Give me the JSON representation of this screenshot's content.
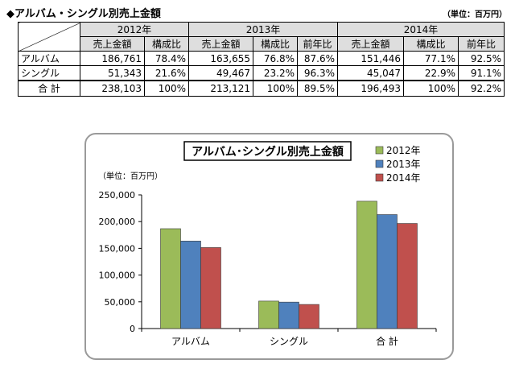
{
  "header": {
    "title": "◆アルバム・シングル別売上金額",
    "unit": "（単位：百万円）"
  },
  "table": {
    "years": [
      "2012年",
      "2013年",
      "2014年"
    ],
    "headers_2012": [
      "売上金額",
      "構成比"
    ],
    "headers_other": [
      "売上金額",
      "構成比",
      "前年比"
    ],
    "rows": [
      {
        "label": "アルバム",
        "cells": [
          "186,761",
          "78.4%",
          "163,655",
          "76.8%",
          "87.6%",
          "151,446",
          "77.1%",
          "92.5%"
        ]
      },
      {
        "label": "シングル",
        "cells": [
          "51,343",
          "21.6%",
          "49,467",
          "23.2%",
          "96.3%",
          "45,047",
          "22.9%",
          "91.1%"
        ]
      },
      {
        "label": "合 計",
        "cells": [
          "238,103",
          "100%",
          "213,121",
          "100%",
          "89.5%",
          "196,493",
          "100%",
          "92.2%"
        ]
      }
    ]
  },
  "chart_data": {
    "type": "bar",
    "title": "アルバム･シングル別売上金額",
    "ylabel": "（単位：百万円）",
    "categories": [
      "アルバム",
      "シングル",
      "合 計"
    ],
    "series": [
      {
        "name": "2012年",
        "values": [
          186761,
          51343,
          238103
        ],
        "color": "#9bbb59"
      },
      {
        "name": "2013年",
        "values": [
          163655,
          49467,
          213121
        ],
        "color": "#4f81bd"
      },
      {
        "name": "2014年",
        "values": [
          151446,
          45047,
          196493
        ],
        "color": "#c0504d"
      }
    ],
    "ylim": [
      0,
      250000
    ],
    "yticks": [
      0,
      50000,
      100000,
      150000,
      200000,
      250000
    ],
    "ytick_labels": [
      "0",
      "50,000",
      "100,000",
      "150,000",
      "200,000",
      "250,000"
    ],
    "grid": false,
    "legend": "top-right"
  }
}
